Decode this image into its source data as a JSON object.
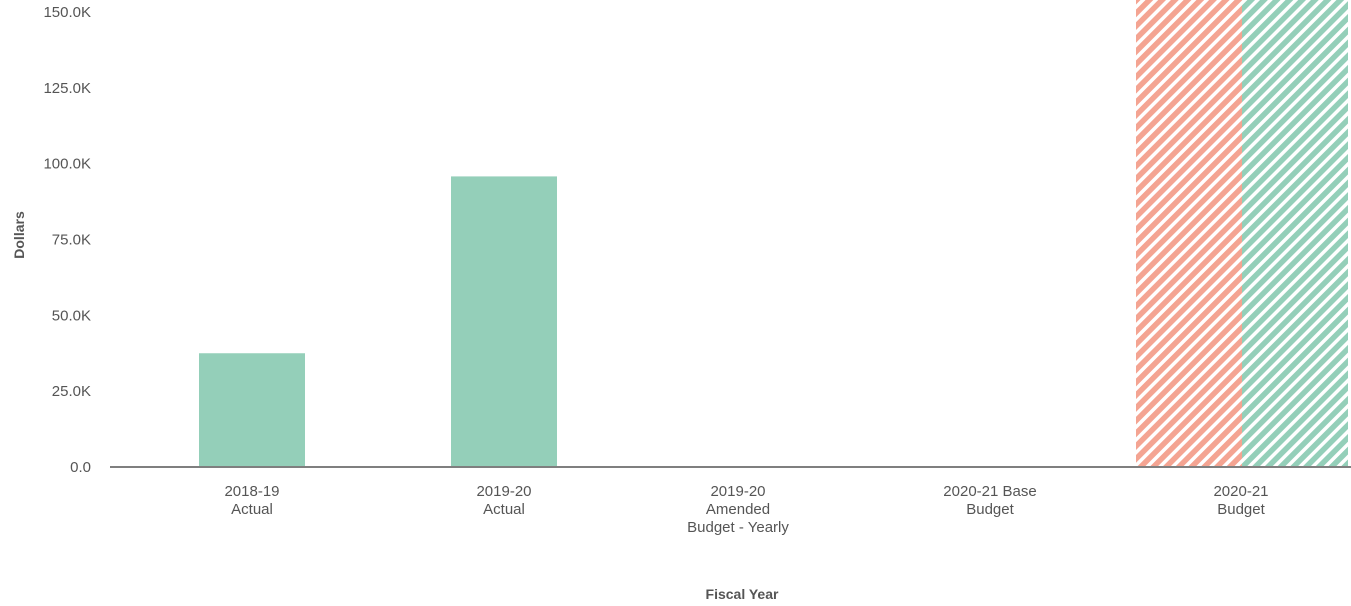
{
  "chart_data": {
    "type": "bar",
    "xlabel": "Fiscal Year",
    "ylabel": "Dollars",
    "categories": [
      [
        "2018-19",
        "Actual"
      ],
      [
        "2019-20",
        "Actual"
      ],
      [
        "2019-20",
        "Amended",
        "Budget - Yearly"
      ],
      [
        "2020-21 Base",
        "Budget"
      ],
      [
        "2020-21",
        "Budget"
      ]
    ],
    "yticks": [
      {
        "value": 0,
        "label": "0.0"
      },
      {
        "value": 25000,
        "label": "25.0K"
      },
      {
        "value": 50000,
        "label": "50.0K"
      },
      {
        "value": 75000,
        "label": "75.0K"
      },
      {
        "value": 100000,
        "label": "100.0K"
      },
      {
        "value": 125000,
        "label": "125.0K"
      },
      {
        "value": 150000,
        "label": "150.0K"
      }
    ],
    "ylim": [
      0,
      150000
    ],
    "grid": false,
    "series": [
      {
        "color": "#f4a492",
        "pattern": "hatched",
        "values": [
          0,
          0,
          0,
          0,
          160000
        ]
      },
      {
        "color": "#94cfb9",
        "pattern": "solid",
        "values": [
          37500,
          95800,
          0,
          0,
          160000
        ]
      }
    ],
    "hatched_series_green": {
      "color": "#94cfb9",
      "category_index": 4
    }
  }
}
